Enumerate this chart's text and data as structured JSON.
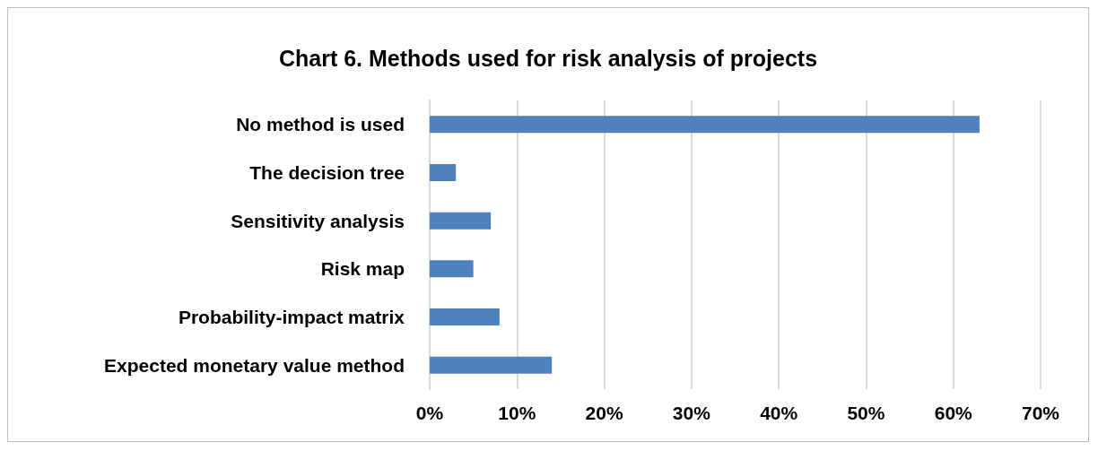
{
  "chart_data": {
    "type": "bar",
    "orientation": "horizontal",
    "title": "Chart 6. Methods used for risk analysis of projects",
    "categories": [
      "No method is used",
      "The decision tree",
      "Sensitivity analysis",
      "Risk map",
      "Probability-impact matrix",
      "Expected monetary value method"
    ],
    "values": [
      63,
      3,
      7,
      5,
      8,
      14
    ],
    "color": "#4f81bd",
    "xlim": [
      0,
      70
    ],
    "xticks": [
      {
        "value": 0,
        "label": "0%"
      },
      {
        "value": 10,
        "label": "10%"
      },
      {
        "value": 20,
        "label": "20%"
      },
      {
        "value": 30,
        "label": "30%"
      },
      {
        "value": 40,
        "label": "40%"
      },
      {
        "value": 50,
        "label": "50%"
      },
      {
        "value": 60,
        "label": "60%"
      },
      {
        "value": 70,
        "label": "70%"
      }
    ],
    "grid": "x"
  }
}
